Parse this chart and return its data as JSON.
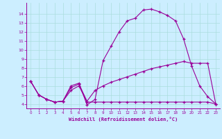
{
  "xlabel": "Windchill (Refroidissement éolien,°C)",
  "bg_color": "#cceeff",
  "line_color": "#990099",
  "grid_color": "#aadddd",
  "xlim": [
    -0.5,
    23.5
  ],
  "ylim": [
    3.5,
    15.2
  ],
  "ytick_vals": [
    4,
    5,
    6,
    7,
    8,
    9,
    10,
    11,
    12,
    13,
    14
  ],
  "xtick_vals": [
    0,
    1,
    2,
    3,
    4,
    5,
    6,
    7,
    8,
    9,
    10,
    11,
    12,
    13,
    14,
    15,
    16,
    17,
    18,
    19,
    20,
    21,
    22,
    23
  ],
  "line1_x": [
    0,
    1,
    2,
    3,
    4,
    5,
    6,
    7,
    8,
    9,
    10,
    11,
    12,
    13,
    14,
    15,
    16,
    17,
    18,
    19,
    20,
    21,
    22,
    23
  ],
  "line1_y": [
    6.5,
    5.0,
    4.5,
    4.2,
    4.3,
    6.0,
    6.3,
    3.9,
    4.5,
    8.8,
    10.4,
    12.0,
    13.2,
    13.5,
    14.4,
    14.5,
    14.2,
    13.8,
    13.2,
    11.2,
    8.2,
    6.0,
    4.8,
    4.0
  ],
  "line2_x": [
    0,
    1,
    2,
    3,
    4,
    5,
    6,
    7,
    8,
    9,
    10,
    11,
    12,
    13,
    14,
    15,
    16,
    17,
    18,
    19,
    20,
    21,
    22,
    23
  ],
  "line2_y": [
    6.5,
    5.0,
    4.5,
    4.2,
    4.3,
    5.8,
    6.2,
    4.3,
    5.5,
    6.0,
    6.4,
    6.7,
    7.0,
    7.3,
    7.6,
    7.9,
    8.1,
    8.3,
    8.5,
    8.7,
    8.5,
    8.5,
    8.5,
    4.0
  ],
  "line3_x": [
    0,
    1,
    2,
    3,
    4,
    5,
    6,
    7,
    8,
    9,
    10,
    11,
    12,
    13,
    14,
    15,
    16,
    17,
    18,
    19,
    20,
    21,
    22,
    23
  ],
  "line3_y": [
    6.5,
    5.0,
    4.5,
    4.2,
    4.3,
    5.5,
    6.0,
    4.2,
    4.2,
    4.2,
    4.2,
    4.2,
    4.2,
    4.2,
    4.2,
    4.2,
    4.2,
    4.2,
    4.2,
    4.2,
    4.2,
    4.2,
    4.2,
    4.0
  ]
}
